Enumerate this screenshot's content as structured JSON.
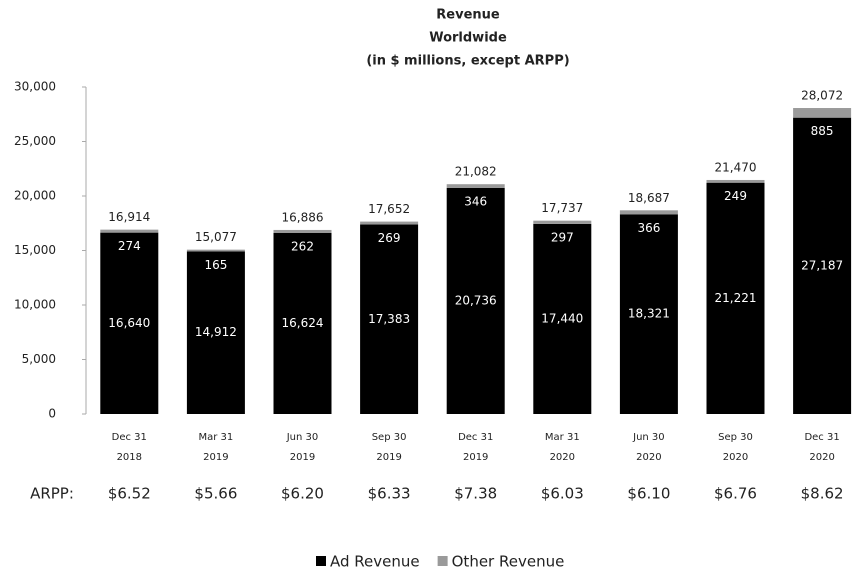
{
  "chart_data": {
    "type": "stacked_bar",
    "title": [
      "Revenue",
      "Worldwide",
      "(in $ millions, except ARPP)"
    ],
    "categories": [
      [
        "Dec 31",
        "2018"
      ],
      [
        "Mar 31",
        "2019"
      ],
      [
        "Jun 30",
        "2019"
      ],
      [
        "Sep 30",
        "2019"
      ],
      [
        "Dec 31",
        "2019"
      ],
      [
        "Mar 31",
        "2020"
      ],
      [
        "Jun 30",
        "2020"
      ],
      [
        "Sep 30",
        "2020"
      ],
      [
        "Dec 31",
        "2020"
      ]
    ],
    "series": [
      {
        "name": "Ad Revenue",
        "color": "#000000",
        "values": [
          16640,
          14912,
          16624,
          17383,
          20736,
          17440,
          18321,
          21221,
          27187
        ],
        "value_labels": [
          "16,640",
          "14,912",
          "16,624",
          "17,383",
          "20,736",
          "17,440",
          "18,321",
          "21,221",
          "27,187"
        ]
      },
      {
        "name": "Other Revenue",
        "color": "#9a9a9a",
        "values": [
          274,
          165,
          262,
          269,
          346,
          297,
          366,
          249,
          885
        ]
      }
    ],
    "totals": {
      "values": [
        16914,
        15077,
        16886,
        17652,
        21082,
        17737,
        18687,
        21470,
        28072
      ],
      "value_labels": [
        "16,914",
        "15,077",
        "16,886",
        "17,652",
        "21,082",
        "17,737",
        "18,687",
        "21,470",
        "28,072"
      ]
    },
    "arpp": {
      "label": "ARPP:",
      "values": [
        6.52,
        5.66,
        6.2,
        6.33,
        7.38,
        6.03,
        6.1,
        6.76,
        8.62
      ],
      "value_labels": [
        "$6.52",
        "$5.66",
        "$6.20",
        "$6.33",
        "$7.38",
        "$6.03",
        "$6.10",
        "$6.76",
        "$8.62"
      ]
    },
    "ylim": [
      0,
      30000
    ],
    "yticks": [
      0,
      {
        "value": 5000,
        "label": "5,000"
      },
      {
        "value": 10000,
        "label": "10,000"
      },
      {
        "value": 15000,
        "label": "15,000"
      },
      {
        "value": 20000,
        "label": "20,000"
      },
      {
        "value": 25000,
        "label": "25,000"
      },
      {
        "value": 30000,
        "label": "30,000"
      }
    ],
    "grid": false,
    "legend": "bottom"
  }
}
